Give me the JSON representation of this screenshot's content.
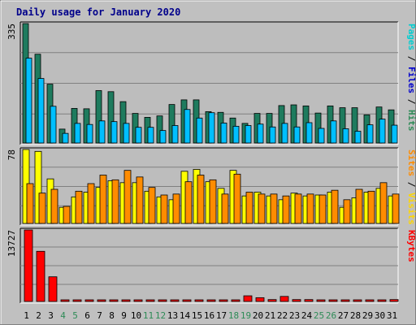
{
  "chart_data": {
    "type": "bar",
    "title": "Daily usage for January 2020",
    "days": [
      "1",
      "2",
      "3",
      "4",
      "5",
      "6",
      "7",
      "8",
      "9",
      "10",
      "11",
      "12",
      "13",
      "14",
      "15",
      "16",
      "17",
      "18",
      "19",
      "20",
      "21",
      "22",
      "23",
      "24",
      "25",
      "26",
      "27",
      "28",
      "29",
      "30",
      "31"
    ],
    "weekend_days": [
      "4",
      "5",
      "11",
      "12",
      "18",
      "19",
      "25",
      "26"
    ],
    "panels": [
      {
        "id": "hits",
        "max_label": "335",
        "ymax": 335,
        "legend": [
          "Pages",
          "/",
          "Files",
          "/",
          "Hits"
        ],
        "legend_colors": [
          "#00ced1",
          "#000000",
          "#0000cd",
          "#000000",
          "#2e8b57"
        ],
        "series": [
          {
            "name": "Hits",
            "color": "#1e7b5e",
            "values": [
              335,
              249,
              165,
              39,
              97,
              96,
              147,
              144,
              116,
              83,
              72,
              76,
              108,
              121,
              121,
              88,
              86,
              70,
              55,
              83,
              83,
              105,
              107,
              104,
              84,
              104,
              99,
              99,
              79,
              101,
              93
            ]
          },
          {
            "name": "Files",
            "color": "#00bfff",
            "values": [
              238,
              181,
              103,
              27,
              55,
              52,
              62,
              60,
              55,
              44,
              44,
              35,
              49,
              94,
              70,
              85,
              56,
              47,
              49,
              53,
              45,
              55,
              45,
              57,
              41,
              62,
              40,
              33,
              51,
              67,
              50
            ]
          },
          {
            "name": "Pages",
            "color": "#00ced1",
            "values": [
              0,
              0,
              0,
              0,
              0,
              0,
              0,
              0,
              0,
              0,
              0,
              0,
              0,
              0,
              0,
              0,
              0,
              0,
              0,
              0,
              0,
              0,
              0,
              0,
              0,
              0,
              0,
              0,
              0,
              0,
              0
            ]
          }
        ]
      },
      {
        "id": "visits",
        "max_label": "78",
        "ymax": 78,
        "legend": [
          "Sites",
          "/",
          "Visits"
        ],
        "legend_colors": [
          "#ff8c00",
          "#000000",
          "#ffd700"
        ],
        "series": [
          {
            "name": "Visits",
            "color": "#ffff00",
            "values": [
              78,
              76,
              47,
              17,
              28,
              33,
              38,
              45,
              43,
              43,
              34,
              28,
              25,
              55,
              57,
              44,
              37,
              56,
              29,
              33,
              29,
              25,
              32,
              29,
              30,
              33,
              17,
              27,
              33,
              37,
              29
            ]
          },
          {
            "name": "Sites",
            "color": "#ff8c00",
            "values": [
              42,
              32,
              36,
              18,
              34,
              42,
              51,
              46,
              56,
              49,
              38,
              30,
              31,
              44,
              51,
              46,
              31,
              52,
              33,
              31,
              31,
              29,
              31,
              31,
              30,
              35,
              25,
              36,
              34,
              43,
              31
            ]
          }
        ]
      },
      {
        "id": "kbytes",
        "max_label": "13727",
        "ymax": 13727,
        "legend": [
          "KBytes"
        ],
        "legend_colors": [
          "#ff0000"
        ],
        "series": [
          {
            "name": "KBytes",
            "color": "#ff0000",
            "values": [
              13727,
              9627,
              4730,
              120,
              120,
              120,
              120,
              120,
              120,
              120,
              240,
              240,
              120,
              240,
              240,
              240,
              240,
              240,
              1083,
              723,
              360,
              963,
              360,
              360,
              240,
              240,
              240,
              240,
              240,
              240,
              360
            ]
          }
        ]
      }
    ]
  }
}
